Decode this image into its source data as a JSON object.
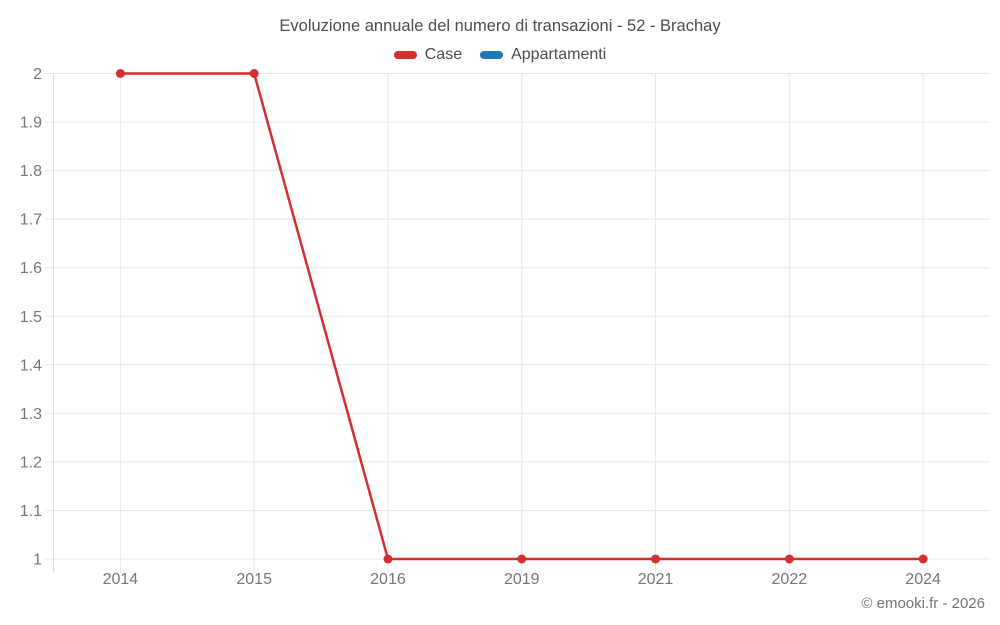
{
  "watermark": "© emooki.fr - 2026",
  "chart_data": {
    "type": "line",
    "title": "Evoluzione annuale del numero di transazioni - 52 - Brachay",
    "categories": [
      "2014",
      "2015",
      "2016",
      "2019",
      "2021",
      "2022",
      "2024"
    ],
    "series": [
      {
        "name": "Case",
        "color": "#d32f2f",
        "values": [
          2,
          2,
          1,
          1,
          1,
          1,
          1
        ]
      },
      {
        "name": "Appartamenti",
        "color": "#1f77b4",
        "values": []
      }
    ],
    "xlabel": "",
    "ylabel": "",
    "ylim": [
      1,
      2
    ],
    "ytick_step": 0.1,
    "ytick_labels": [
      "1",
      "1.1",
      "1.2",
      "1.3",
      "1.4",
      "1.5",
      "1.6",
      "1.7",
      "1.8",
      "1.9",
      "2"
    ],
    "grid": true,
    "legend_position": "top",
    "marker": "circle",
    "grid_color": "#e8e8e8",
    "axis_color": "#dedede",
    "tick_label_color": "#757575"
  }
}
